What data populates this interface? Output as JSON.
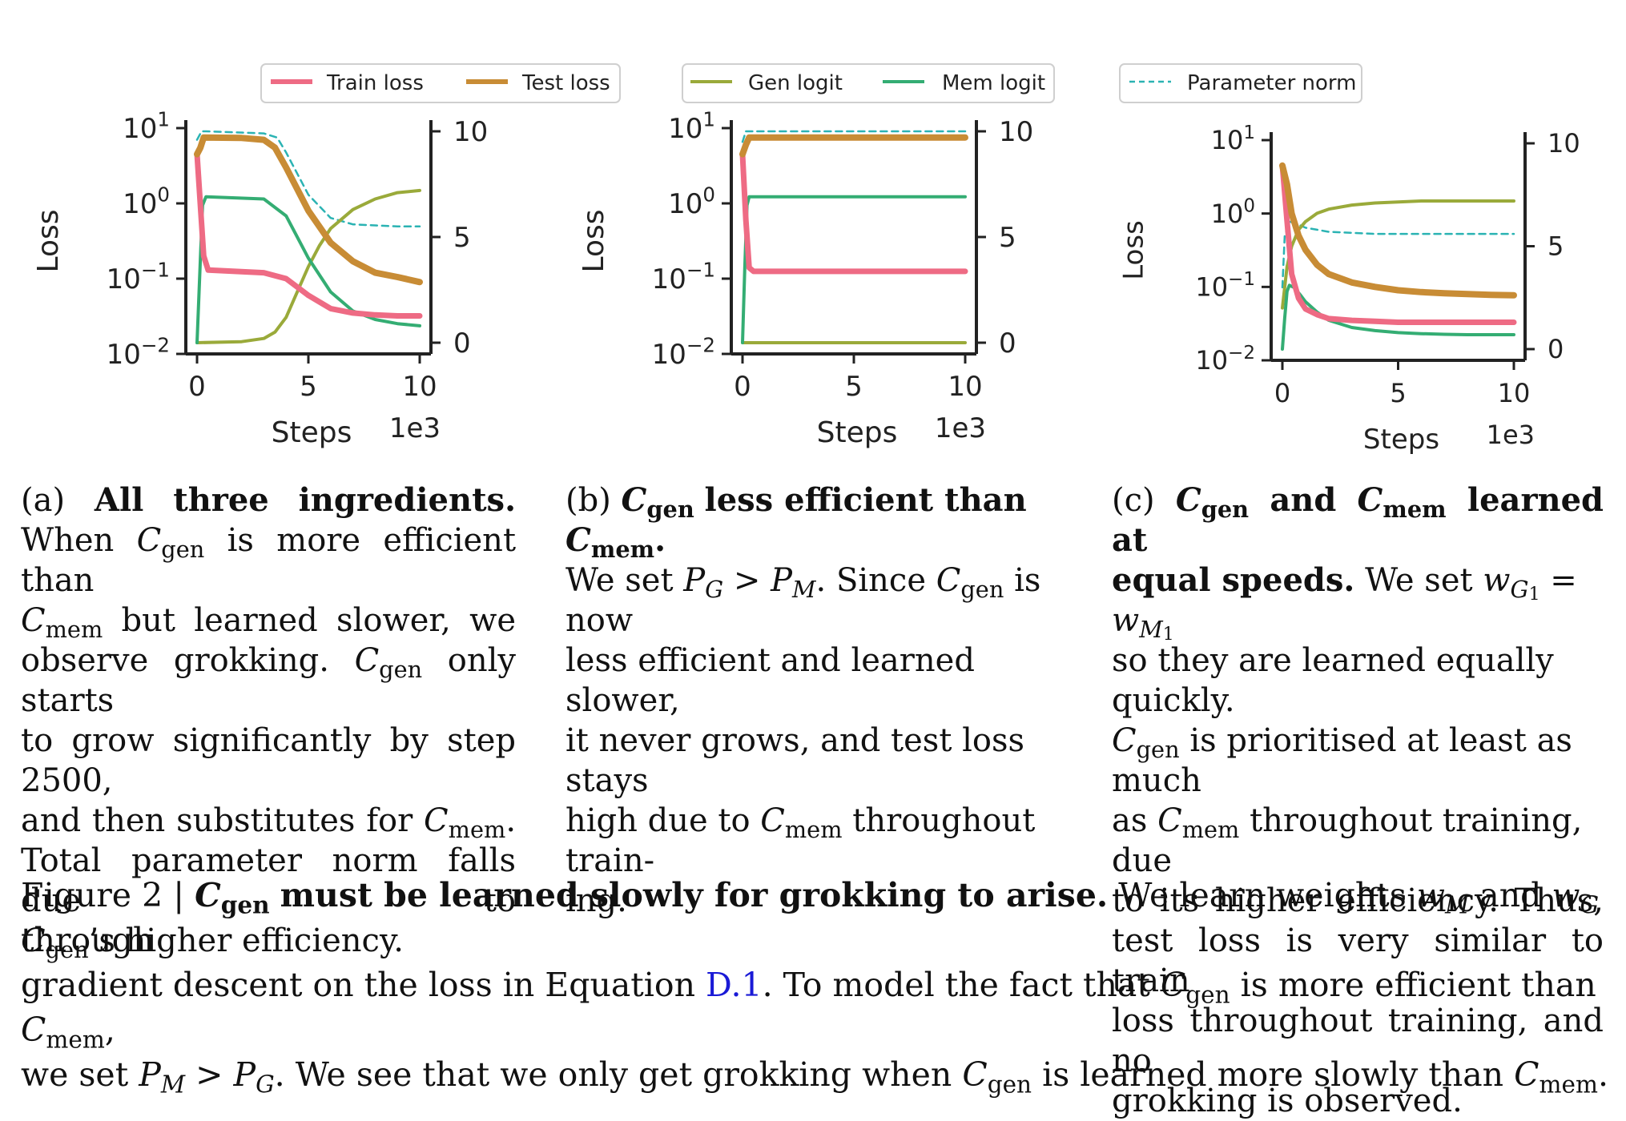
{
  "colors": {
    "train": "#ee6b84",
    "test": "#c88c35",
    "gen": "#9aaa3a",
    "mem": "#34ad73",
    "norm": "#2bb3b3",
    "link": "#1a1ad6"
  },
  "legend_labels": {
    "train": "Train loss",
    "test": "Test loss",
    "gen": "Gen logit",
    "mem": "Mem logit",
    "norm": "Parameter norm"
  },
  "chart_data": [
    {
      "type": "line",
      "panel": "a",
      "xlabel": "Steps",
      "x_scale_label": "1e3",
      "ylabel": "Loss",
      "xlim": [
        0,
        10
      ],
      "xticks": [
        0,
        5,
        10
      ],
      "ylim_log": [
        0.01,
        10
      ],
      "yticks_log": [
        "10^1",
        "10^0",
        "10^-1",
        "10^-2"
      ],
      "ylim_right": [
        0,
        10
      ],
      "yticks_right": [
        0,
        5,
        10
      ],
      "legend": [
        "Train loss",
        "Test loss"
      ],
      "series": [
        {
          "key": "train",
          "axis": "left",
          "x": [
            0,
            0.3,
            0.5,
            3,
            4,
            5,
            6,
            7,
            8,
            9,
            10
          ],
          "y": [
            4.5,
            0.2,
            0.13,
            0.12,
            0.1,
            0.06,
            0.04,
            0.035,
            0.033,
            0.032,
            0.032
          ]
        },
        {
          "key": "test",
          "axis": "left",
          "x": [
            0,
            0.15,
            0.3,
            2,
            3,
            3.5,
            4,
            5,
            6,
            7,
            8,
            9,
            10
          ],
          "y": [
            4.5,
            5.5,
            7.5,
            7.4,
            7.0,
            5.5,
            3.0,
            0.8,
            0.3,
            0.17,
            0.12,
            0.105,
            0.09
          ]
        },
        {
          "key": "gen",
          "axis": "right",
          "x": [
            0,
            2,
            3,
            3.5,
            4,
            4.5,
            5,
            5.5,
            6,
            7,
            8,
            9,
            10
          ],
          "y": [
            0,
            0.05,
            0.2,
            0.5,
            1.2,
            2.4,
            3.6,
            4.6,
            5.4,
            6.3,
            6.8,
            7.1,
            7.2
          ]
        },
        {
          "key": "mem",
          "axis": "right",
          "x": [
            0,
            0.15,
            0.25,
            0.4,
            3,
            4,
            5,
            6,
            7,
            8,
            9,
            10
          ],
          "y": [
            0,
            4.0,
            6.5,
            6.9,
            6.8,
            6.0,
            4.0,
            2.4,
            1.5,
            1.1,
            0.9,
            0.8
          ]
        },
        {
          "key": "norm",
          "axis": "right",
          "x": [
            0,
            0.2,
            0.4,
            3,
            3.6,
            4,
            5,
            6,
            7,
            8,
            9,
            10
          ],
          "y": [
            9.6,
            10,
            10,
            9.9,
            9.7,
            9.0,
            7.0,
            5.9,
            5.6,
            5.55,
            5.5,
            5.5
          ]
        }
      ]
    },
    {
      "type": "line",
      "panel": "b",
      "xlabel": "Steps",
      "x_scale_label": "1e3",
      "ylabel": "Loss",
      "xlim": [
        0,
        10
      ],
      "xticks": [
        0,
        5,
        10
      ],
      "ylim_log": [
        0.01,
        10
      ],
      "yticks_log": [
        "10^1",
        "10^0",
        "10^-1",
        "10^-2"
      ],
      "ylim_right": [
        0,
        10
      ],
      "yticks_right": [
        0,
        5,
        10
      ],
      "legend": [
        "Gen logit",
        "Mem logit"
      ],
      "series": [
        {
          "key": "train",
          "axis": "left",
          "x": [
            0,
            0.15,
            0.3,
            0.5,
            10
          ],
          "y": [
            4.5,
            0.6,
            0.14,
            0.125,
            0.125
          ]
        },
        {
          "key": "test",
          "axis": "left",
          "x": [
            0,
            0.15,
            0.3,
            10
          ],
          "y": [
            4.5,
            6.0,
            7.5,
            7.5
          ]
        },
        {
          "key": "gen",
          "axis": "right",
          "x": [
            0,
            10
          ],
          "y": [
            0,
            0
          ]
        },
        {
          "key": "mem",
          "axis": "right",
          "x": [
            0,
            0.1,
            0.2,
            0.3,
            10
          ],
          "y": [
            0,
            3.5,
            6.5,
            6.9,
            6.9
          ]
        },
        {
          "key": "norm",
          "axis": "right",
          "x": [
            0,
            0.15,
            0.3,
            10
          ],
          "y": [
            9.5,
            10,
            10,
            10
          ]
        }
      ]
    },
    {
      "type": "line",
      "panel": "c",
      "xlabel": "Steps",
      "x_scale_label": "1e3",
      "ylabel": "Loss",
      "xlim": [
        0,
        10
      ],
      "xticks": [
        0,
        5,
        10
      ],
      "ylim_log": [
        0.01,
        10
      ],
      "yticks_log": [
        "10^1",
        "10^0",
        "10^-1",
        "10^-2"
      ],
      "ylim_right": [
        0,
        10
      ],
      "yticks_right": [
        0,
        5,
        10
      ],
      "legend": [
        "Parameter norm"
      ],
      "series": [
        {
          "key": "train",
          "axis": "left",
          "x": [
            0,
            0.2,
            0.4,
            0.7,
            1,
            1.5,
            2,
            3,
            4,
            5,
            7,
            10
          ],
          "y": [
            4.5,
            0.8,
            0.15,
            0.07,
            0.05,
            0.042,
            0.037,
            0.035,
            0.034,
            0.033,
            0.033,
            0.033
          ]
        },
        {
          "key": "test",
          "axis": "left",
          "x": [
            0,
            0.2,
            0.4,
            0.7,
            1,
            1.5,
            2,
            3,
            4,
            5,
            6,
            7,
            8,
            9,
            10
          ],
          "y": [
            4.5,
            2.5,
            1.0,
            0.5,
            0.32,
            0.2,
            0.15,
            0.115,
            0.1,
            0.09,
            0.085,
            0.082,
            0.08,
            0.078,
            0.077
          ]
        },
        {
          "key": "gen",
          "axis": "right",
          "x": [
            0,
            0.2,
            0.4,
            0.7,
            1,
            1.5,
            2,
            3,
            4,
            5,
            6,
            7,
            8,
            9,
            10
          ],
          "y": [
            2,
            4.0,
            5.0,
            5.8,
            6.2,
            6.6,
            6.8,
            7.0,
            7.1,
            7.15,
            7.2,
            7.2,
            7.2,
            7.2,
            7.2
          ]
        },
        {
          "key": "mem",
          "axis": "right",
          "x": [
            0,
            0.1,
            0.2,
            0.3,
            0.5,
            0.8,
            1,
            1.5,
            2,
            3,
            4,
            5,
            6,
            7,
            8,
            10
          ],
          "y": [
            0,
            1.5,
            2.8,
            3.1,
            3.0,
            2.6,
            2.3,
            1.8,
            1.4,
            1.05,
            0.9,
            0.8,
            0.75,
            0.72,
            0.7,
            0.7
          ]
        },
        {
          "key": "norm",
          "axis": "right",
          "x": [
            0,
            0.1,
            0.3,
            0.6,
            1,
            1.5,
            2,
            3,
            4,
            5,
            7,
            10
          ],
          "y": [
            3,
            5.5,
            6.2,
            6.1,
            5.9,
            5.8,
            5.7,
            5.65,
            5.6,
            5.6,
            5.6,
            5.6
          ]
        }
      ]
    }
  ],
  "captions": {
    "a": "(a) All three ingredients. When Cgen is more efficient than Cmem but learned slower, we observe grokking. Cgen only starts to grow significantly by step 2500, and then substitutes for Cmem. Total parameter norm falls due to Cgen's higher efficiency.",
    "b": "(b) Cgen less efficient than Cmem. We set PG > PM. Since Cgen is now less efficient and learned slower, it never grows, and test loss stays high due to Cmem throughout training.",
    "c": "(c) Cgen and Cmem learned at equal speeds. We set wG1 = wM1 so they are learned equally quickly. Cgen is prioritised at least as much as Cmem throughout training, due to its higher efficiency. Thus, test loss is very similar to train loss throughout training, and no grokking is observed.",
    "figure": "Figure 2 | Cgen must be learned slowly for grokking to arise. We learn weights wM and wG through gradient descent on the loss in Equation D.1. To model the fact that Cgen is more efficient than Cmem, we set PM > PG. We see that we only get grokking when Cgen is learned more slowly than Cmem."
  },
  "text": {
    "a_label": "(a)",
    "a_title_1": "All",
    "a_title_2": "three",
    "a_title_3": "ingredients.",
    "a_when": "When",
    "a_more_eff": "is more efficient than",
    "a_but": "but",
    "a_learned": "learned",
    "a_slower": "slower,",
    "a_we": "we",
    "a_observe": "observe grokking.",
    "a_only": "only starts",
    "a_grow": "to grow significantly by step 2500,",
    "a_and": "and",
    "a_then": "then",
    "a_subs": "substitutes",
    "a_for": "for",
    "a_total": "Total parameter norm falls due to",
    "a_higher": "’s higher efficiency.",
    "b_label": "(b)",
    "b_title": "less efficient than",
    "b_weset": "We set",
    "b_since": ". Since",
    "b_isnow": "is now",
    "b_l3": "less efficient and learned slower,",
    "b_l4": "it never grows, and test loss stays",
    "b_l5a": "high due to",
    "b_l5b": "throughout train-",
    "b_l6": "ing.",
    "c_label": "(c)",
    "c_and": "and",
    "c_learned": "learned",
    "c_at": "at",
    "c_equal": "equal speeds.",
    "c_weset": "We set",
    "c_l3": "so they are learned equally quickly.",
    "c_prior": "is prioritised at least as much",
    "c_as": "as",
    "c_through": "throughout training, due",
    "c_l6a": "to",
    "c_l6b": "its",
    "c_l6c": "higher",
    "c_l6d": "efficiency.",
    "c_l6e": "Thus,",
    "c_l7": "test loss is very similar to train",
    "c_l8": "loss throughout training, and no",
    "c_l9": "grokking is observed.",
    "fig_label": "Figure 2 |",
    "fig_bold": "must be learned slowly for grokking to arise.",
    "fig_t1": "We learn weights",
    "fig_and": "and",
    "fig_t2": "through",
    "fig_t3": "gradient descent on the loss in Equation",
    "fig_link": "D.1",
    "fig_t4": ". To model the fact that",
    "fig_t5": "is more efficient than",
    "fig_t6": "we set",
    "fig_t7": ". We see that we only get grokking when",
    "fig_t8": "is learned more slowly than",
    "sym_C": "C",
    "sub_gen": "gen",
    "sub_mem": "mem",
    "sym_P": "P",
    "sym_w": "w",
    "sub_G": "G",
    "sub_M": "M",
    "gt": ">",
    "eq": "=",
    "dot": ".",
    "comma": ","
  }
}
